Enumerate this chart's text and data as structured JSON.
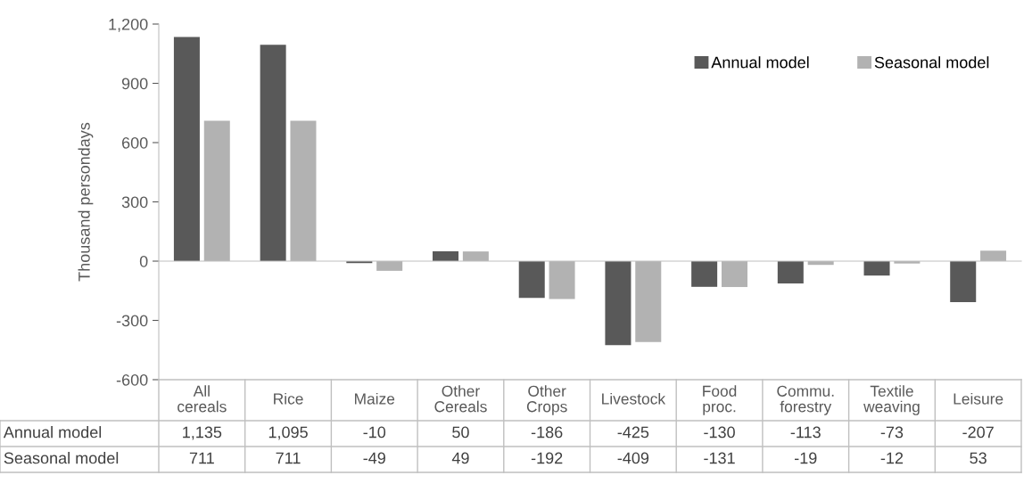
{
  "chart_data": {
    "type": "bar",
    "ylabel": "Thousand persondays",
    "categories": [
      "All cereals",
      "Rice",
      "Maize",
      "Other Cereals",
      "Other Crops",
      "Livestock",
      "Food proc.",
      "Commu. forestry",
      "Textile weaving",
      "Leisure"
    ],
    "series": [
      {
        "name": "Annual model",
        "color": "#595959",
        "values": [
          1135,
          1095,
          -10,
          50,
          -186,
          -425,
          -130,
          -113,
          -73,
          -207
        ],
        "value_labels": [
          "1,135",
          "1,095",
          "-10",
          "50",
          "-186",
          "-425",
          "-130",
          "-113",
          "-73",
          "-207"
        ]
      },
      {
        "name": "Seasonal model",
        "color": "#b2b2b2",
        "values": [
          711,
          711,
          -49,
          49,
          -192,
          -409,
          -131,
          -19,
          -12,
          53
        ],
        "value_labels": [
          "711",
          "711",
          "-49",
          "49",
          "-192",
          "-409",
          "-131",
          "-19",
          "-12",
          "53"
        ]
      }
    ],
    "ylim": [
      -600,
      1200
    ],
    "yticks": [
      {
        "value": -600,
        "label": "-600"
      },
      {
        "value": -300,
        "label": "-300"
      },
      0,
      300,
      600,
      900,
      {
        "value": 1200,
        "label": "1,200"
      }
    ],
    "legend": "top right"
  }
}
